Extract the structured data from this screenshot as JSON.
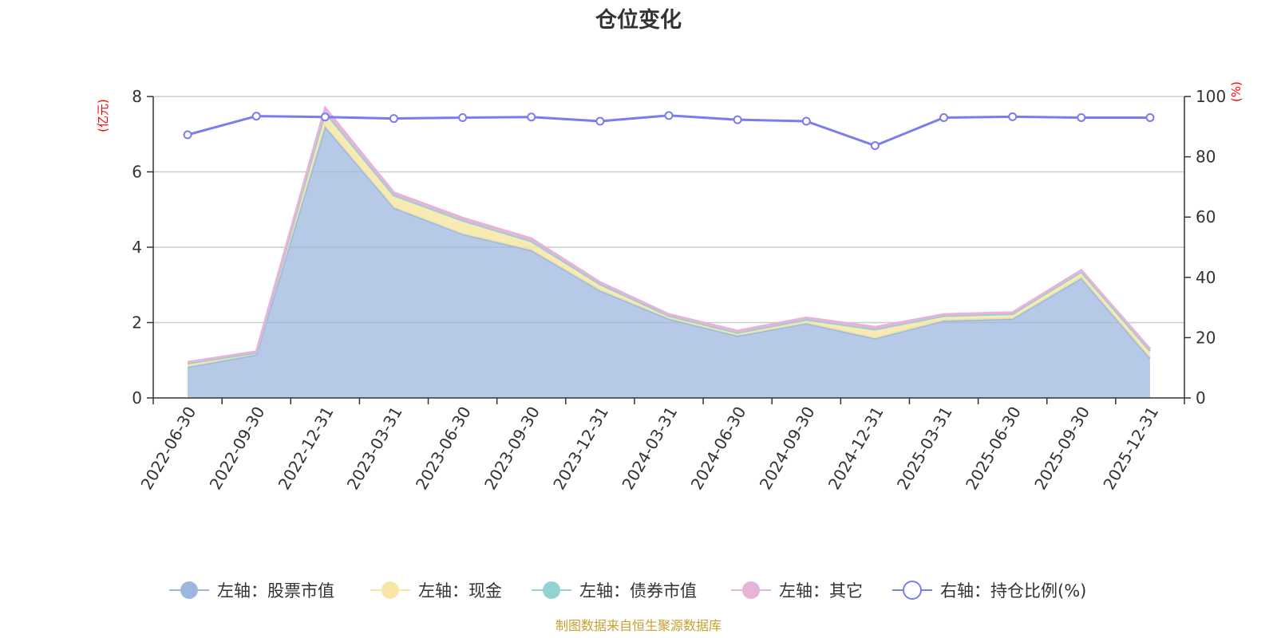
{
  "chart_data": {
    "type": "area",
    "title": "仓位变化",
    "categories": [
      "2022-06-30",
      "2022-09-30",
      "2022-12-31",
      "2023-03-31",
      "2023-06-30",
      "2023-09-30",
      "2023-12-31",
      "2024-03-31",
      "2024-06-30",
      "2024-09-30",
      "2024-12-31",
      "2025-03-31",
      "2025-06-30",
      "2025-09-30",
      "2025-12-31"
    ],
    "left_axis": {
      "unit": "(亿元)",
      "ylim": [
        0,
        8
      ],
      "ticks": [
        "0",
        "2",
        "4",
        "6",
        "8"
      ]
    },
    "right_axis": {
      "unit": "(%)",
      "ylim": [
        0,
        100
      ],
      "ticks": [
        "0",
        "20",
        "40",
        "60",
        "80",
        "100"
      ]
    },
    "stacked": true,
    "series": [
      {
        "name": "左轴：股票市值",
        "axis": "left",
        "color": "#9db8e0",
        "values": [
          0.82,
          1.15,
          7.2,
          5.05,
          4.35,
          3.92,
          2.85,
          2.1,
          1.65,
          1.98,
          1.58,
          2.05,
          2.1,
          3.18,
          1.05
        ]
      },
      {
        "name": "左轴：现金",
        "axis": "left",
        "color": "#f7e6a6",
        "values": [
          0.1,
          0.05,
          0.38,
          0.33,
          0.36,
          0.24,
          0.17,
          0.08,
          0.08,
          0.1,
          0.24,
          0.13,
          0.13,
          0.17,
          0.2
        ]
      },
      {
        "name": "左轴：债券市值",
        "axis": "left",
        "color": "#93d2d2",
        "values": [
          0,
          0,
          0,
          0,
          0,
          0,
          0,
          0,
          0,
          0,
          0,
          0,
          0,
          0,
          0
        ]
      },
      {
        "name": "左轴：其它",
        "axis": "left",
        "color": "#e6b3d9",
        "values": [
          0.03,
          0.03,
          0.12,
          0.07,
          0.07,
          0.07,
          0.05,
          0.04,
          0.05,
          0.05,
          0.06,
          0.04,
          0.04,
          0.04,
          0.05
        ]
      },
      {
        "name": "右轴：持仓比例(%)",
        "axis": "right",
        "type": "line",
        "color": "#7a7ded",
        "values": [
          87.3,
          93.5,
          93.2,
          92.7,
          93.0,
          93.2,
          91.8,
          93.7,
          92.3,
          91.8,
          83.7,
          93.0,
          93.3,
          93.0,
          93.0
        ]
      }
    ],
    "grid": true,
    "legend_position": "bottom"
  },
  "source_note": "制图数据来自恒生聚源数据库"
}
